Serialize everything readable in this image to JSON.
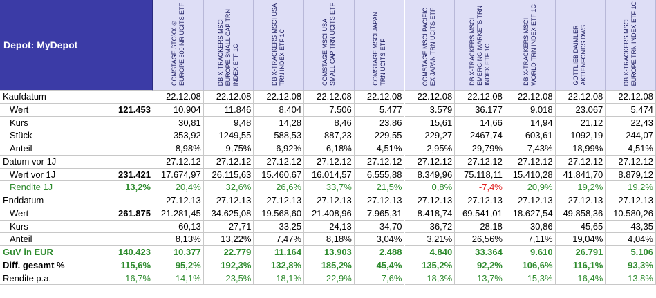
{
  "header": {
    "title": "Depot: MyDepot",
    "funds": [
      [
        "COMSTAGE STOXX ®",
        "EUROPE 600 NR UCITS ETF"
      ],
      [
        "DB X-TRACKERS MSCI",
        "EUROPE SMALL CAP TRN",
        "INDEX ETF 1C"
      ],
      [
        "DB X-TRACKERS MSCI USA",
        "TRN INDEX ETF 1C"
      ],
      [
        "COMSTAGE MSCI USA",
        "SMALL CAP TRN UCITS ETF"
      ],
      [
        "COMSTAGE MSCI JAPAN",
        "TRN UCITS ETF"
      ],
      [
        "COMSTAGE MSCI PACIFIC",
        "EX JAPAN TRN UCITS ETF"
      ],
      [
        "DB X-TRACKERS MSCI",
        "EMERGING MARKETS TRN",
        "INDEX ETF 1C"
      ],
      [
        "DB X-TRACKERS MSCI",
        "WORLD TRN INDEX ETF 1C"
      ],
      [
        "GOTTLIEB DAIMLER",
        "AKTIENFONDS DWS"
      ],
      [
        "DB X-TRACKERS MSCI",
        "EUROPE TRN INDEX ETF 1C"
      ]
    ]
  },
  "table": {
    "sections": [
      {
        "label": "Kaufdatum",
        "values": [
          "22.12.08",
          "22.12.08",
          "22.12.08",
          "22.12.08",
          "22.12.08",
          "22.12.08",
          "22.12.08",
          "22.12.08",
          "22.12.08",
          "22.12.08"
        ],
        "items": [
          {
            "label": "Wert",
            "total": "121.453",
            "values": [
              "10.904",
              "11.846",
              "8.404",
              "7.506",
              "5.477",
              "3.579",
              "36.177",
              "9.018",
              "23.067",
              "5.474"
            ]
          },
          {
            "label": "Kurs",
            "values": [
              "30,81",
              "9,48",
              "14,28",
              "8,46",
              "23,86",
              "15,61",
              "14,66",
              "14,94",
              "21,12",
              "22,43"
            ]
          },
          {
            "label": "Stück",
            "values": [
              "353,92",
              "1249,55",
              "588,53",
              "887,23",
              "229,55",
              "229,27",
              "2467,74",
              "603,61",
              "1092,19",
              "244,07"
            ]
          },
          {
            "label": "Anteil",
            "values": [
              "8,98%",
              "9,75%",
              "6,92%",
              "6,18%",
              "4,51%",
              "2,95%",
              "29,79%",
              "7,43%",
              "18,99%",
              "4,51%"
            ]
          }
        ]
      },
      {
        "label": "Datum vor 1J",
        "values": [
          "27.12.12",
          "27.12.12",
          "27.12.12",
          "27.12.12",
          "27.12.12",
          "27.12.12",
          "27.12.12",
          "27.12.12",
          "27.12.12",
          "27.12.12"
        ],
        "items": [
          {
            "label": "Wert vor 1J",
            "total": "231.421",
            "values": [
              "17.674,97",
              "26.115,63",
              "15.460,67",
              "16.014,57",
              "6.555,88",
              "8.349,96",
              "75.118,11",
              "15.410,28",
              "41.841,70",
              "8.879,12"
            ]
          },
          {
            "label": "Rendite 1J",
            "total": "13,2%",
            "color": "#2e8b2e",
            "label_color": "#2e8b2e",
            "values": [
              "20,4%",
              "32,6%",
              "26,6%",
              "33,7%",
              "21,5%",
              "0,8%",
              "-7,4%",
              "20,9%",
              "19,2%",
              "19,2%"
            ]
          }
        ]
      },
      {
        "label": "Enddatum",
        "values": [
          "27.12.13",
          "27.12.13",
          "27.12.13",
          "27.12.13",
          "27.12.13",
          "27.12.13",
          "27.12.13",
          "27.12.13",
          "27.12.13",
          "27.12.13"
        ],
        "items": [
          {
            "label": "Wert",
            "total": "261.875",
            "values": [
              "21.281,45",
              "34.625,08",
              "19.568,60",
              "21.408,96",
              "7.965,31",
              "8.418,74",
              "69.541,01",
              "18.627,54",
              "49.858,36",
              "10.580,26"
            ]
          },
          {
            "label": "Kurs",
            "values": [
              "60,13",
              "27,71",
              "33,25",
              "24,13",
              "34,70",
              "36,72",
              "28,18",
              "30,86",
              "45,65",
              "43,35"
            ]
          },
          {
            "label": "Anteil",
            "values": [
              "8,13%",
              "13,22%",
              "7,47%",
              "8,18%",
              "3,04%",
              "3,21%",
              "26,56%",
              "7,11%",
              "19,04%",
              "4,04%"
            ]
          }
        ]
      },
      {
        "label": "GuV in EUR",
        "total": "140.423",
        "bold": true,
        "color": "#2e8b2e",
        "label_color": "#2e8b2e",
        "values": [
          "10.377",
          "22.779",
          "11.164",
          "13.903",
          "2.488",
          "4.840",
          "33.364",
          "9.610",
          "26.791",
          "5.106"
        ]
      },
      {
        "label": "Diff. gesamt %",
        "total": "115,6%",
        "bold": true,
        "color": "#2e8b2e",
        "values": [
          "95,2%",
          "192,3%",
          "132,8%",
          "185,2%",
          "45,4%",
          "135,2%",
          "92,2%",
          "106,6%",
          "116,1%",
          "93,3%"
        ]
      },
      {
        "label": "Rendite p.a.",
        "total": "16,7%",
        "color": "#2e8b2e",
        "values": [
          "14,1%",
          "23,5%",
          "18,1%",
          "22,9%",
          "7,6%",
          "18,3%",
          "13,7%",
          "15,3%",
          "16,4%",
          "13,8%"
        ]
      }
    ]
  }
}
